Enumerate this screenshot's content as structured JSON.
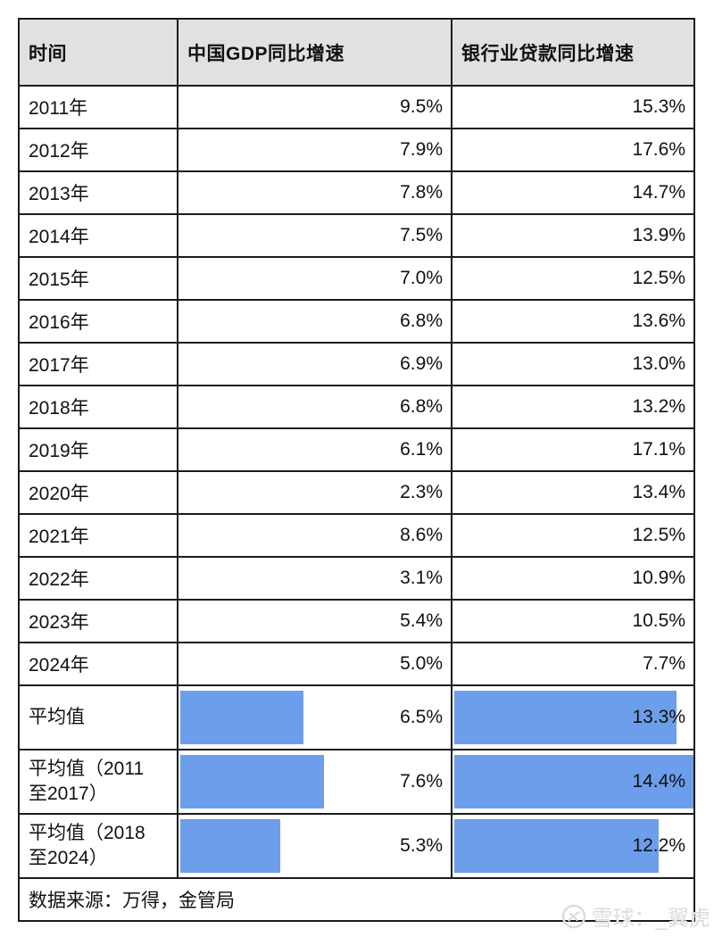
{
  "table": {
    "headers": [
      "时间",
      "中国GDP同比增速",
      "银行业贷款同比增速"
    ],
    "rows": [
      {
        "year": "2011年",
        "gdp": "9.5%",
        "loan": "15.3%"
      },
      {
        "year": "2012年",
        "gdp": "7.9%",
        "loan": "17.6%"
      },
      {
        "year": "2013年",
        "gdp": "7.8%",
        "loan": "14.7%"
      },
      {
        "year": "2014年",
        "gdp": "7.5%",
        "loan": "13.9%"
      },
      {
        "year": "2015年",
        "gdp": "7.0%",
        "loan": "12.5%"
      },
      {
        "year": "2016年",
        "gdp": "6.8%",
        "loan": "13.6%"
      },
      {
        "year": "2017年",
        "gdp": "6.9%",
        "loan": "13.0%"
      },
      {
        "year": "2018年",
        "gdp": "6.8%",
        "loan": "13.2%"
      },
      {
        "year": "2019年",
        "gdp": "6.1%",
        "loan": "17.1%"
      },
      {
        "year": "2020年",
        "gdp": "2.3%",
        "loan": "13.4%"
      },
      {
        "year": "2021年",
        "gdp": "8.6%",
        "loan": "12.5%"
      },
      {
        "year": "2022年",
        "gdp": "3.1%",
        "loan": "10.9%"
      },
      {
        "year": "2023年",
        "gdp": "5.4%",
        "loan": "10.5%"
      },
      {
        "year": "2024年",
        "gdp": "5.0%",
        "loan": "7.7%"
      }
    ],
    "averages": [
      {
        "label": "平均值",
        "gdp": "6.5%",
        "loan": "13.3%",
        "gdp_bar_pct": 45.1,
        "loan_bar_pct": 92.4
      },
      {
        "label": "平均值（2011\n至2017）",
        "gdp": "7.6%",
        "loan": "14.4%",
        "gdp_bar_pct": 52.8,
        "loan_bar_pct": 100
      },
      {
        "label": "平均值（2018\n至2024）",
        "gdp": "5.3%",
        "loan": "12.2%",
        "gdp_bar_pct": 36.8,
        "loan_bar_pct": 84.7
      }
    ],
    "source": "数据来源：万得，金管局"
  },
  "watermark": {
    "text": "雪球：_翼虎",
    "logo": "xueqiu-circle-logo"
  },
  "colors": {
    "bar_fill": "#6d9eeb",
    "header_bg": "#dfe1e3",
    "border": "#1b1b1b",
    "watermark": "#dcdcdc"
  },
  "chart_data": {
    "type": "table",
    "columns": [
      "时间",
      "中国GDP同比增速",
      "银行业贷款同比增速"
    ],
    "years": [
      "2011年",
      "2012年",
      "2013年",
      "2014年",
      "2015年",
      "2016年",
      "2017年",
      "2018年",
      "2019年",
      "2020年",
      "2021年",
      "2022年",
      "2023年",
      "2024年"
    ],
    "series": [
      {
        "name": "中国GDP同比增速",
        "values": [
          9.5,
          7.9,
          7.8,
          7.5,
          7.0,
          6.8,
          6.9,
          6.8,
          6.1,
          2.3,
          8.6,
          3.1,
          5.4,
          5.0
        ]
      },
      {
        "name": "银行业贷款同比增速",
        "values": [
          15.3,
          17.6,
          14.7,
          13.9,
          12.5,
          13.6,
          13.0,
          13.2,
          17.1,
          13.4,
          12.5,
          10.9,
          10.5,
          7.7
        ]
      }
    ],
    "averages": [
      {
        "label": "平均值",
        "gdp": 6.5,
        "loan": 13.3
      },
      {
        "label": "平均值（2011至2017）",
        "gdp": 7.6,
        "loan": 14.4
      },
      {
        "label": "平均值（2018至2024）",
        "gdp": 5.3,
        "loan": 12.2
      }
    ],
    "bar_scale_max": 14.4,
    "unit": "%",
    "source": "数据来源：万得，金管局"
  }
}
